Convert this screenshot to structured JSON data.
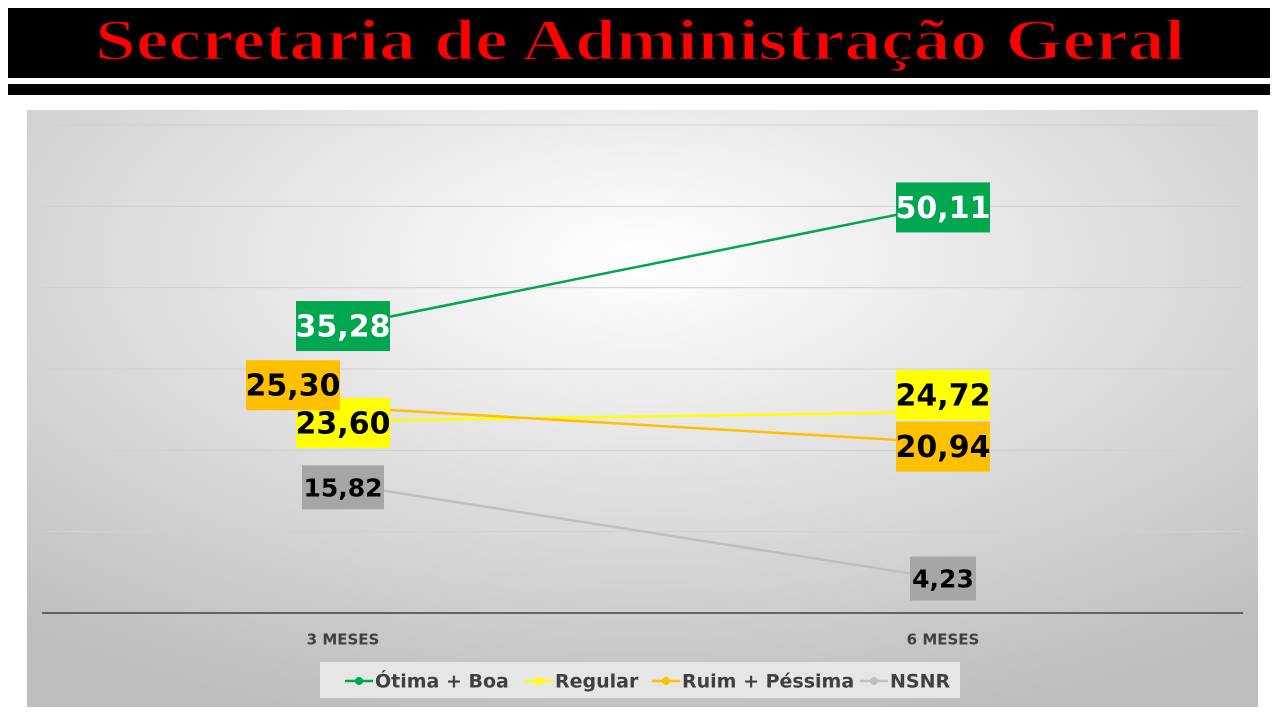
{
  "chart_data": {
    "type": "line",
    "title": "Secretaria de Administração Geral",
    "categories": [
      "3 MESES",
      "6 MESES"
    ],
    "series": [
      {
        "name": "Ótima + Boa",
        "color": "#00a650",
        "values": [
          35.28,
          50.11
        ],
        "value_labels": [
          "35,28",
          "50,11"
        ]
      },
      {
        "name": "Regular",
        "color": "#ffff00",
        "values": [
          23.6,
          24.72
        ],
        "value_labels": [
          "23,60",
          "24,72"
        ]
      },
      {
        "name": "Ruim + Péssima",
        "color": "#ffc000",
        "values": [
          25.3,
          20.94
        ],
        "value_labels": [
          "25,30",
          "20,94"
        ]
      },
      {
        "name": "NSNR",
        "color": "#bfbfbf",
        "values": [
          15.82,
          4.23
        ],
        "value_labels": [
          "15,82",
          "4,23"
        ]
      }
    ],
    "ylim": [
      0,
      60
    ],
    "yticks": [
      0,
      10,
      20,
      30,
      40,
      50,
      60
    ],
    "grid": true,
    "legend": "bottom"
  }
}
